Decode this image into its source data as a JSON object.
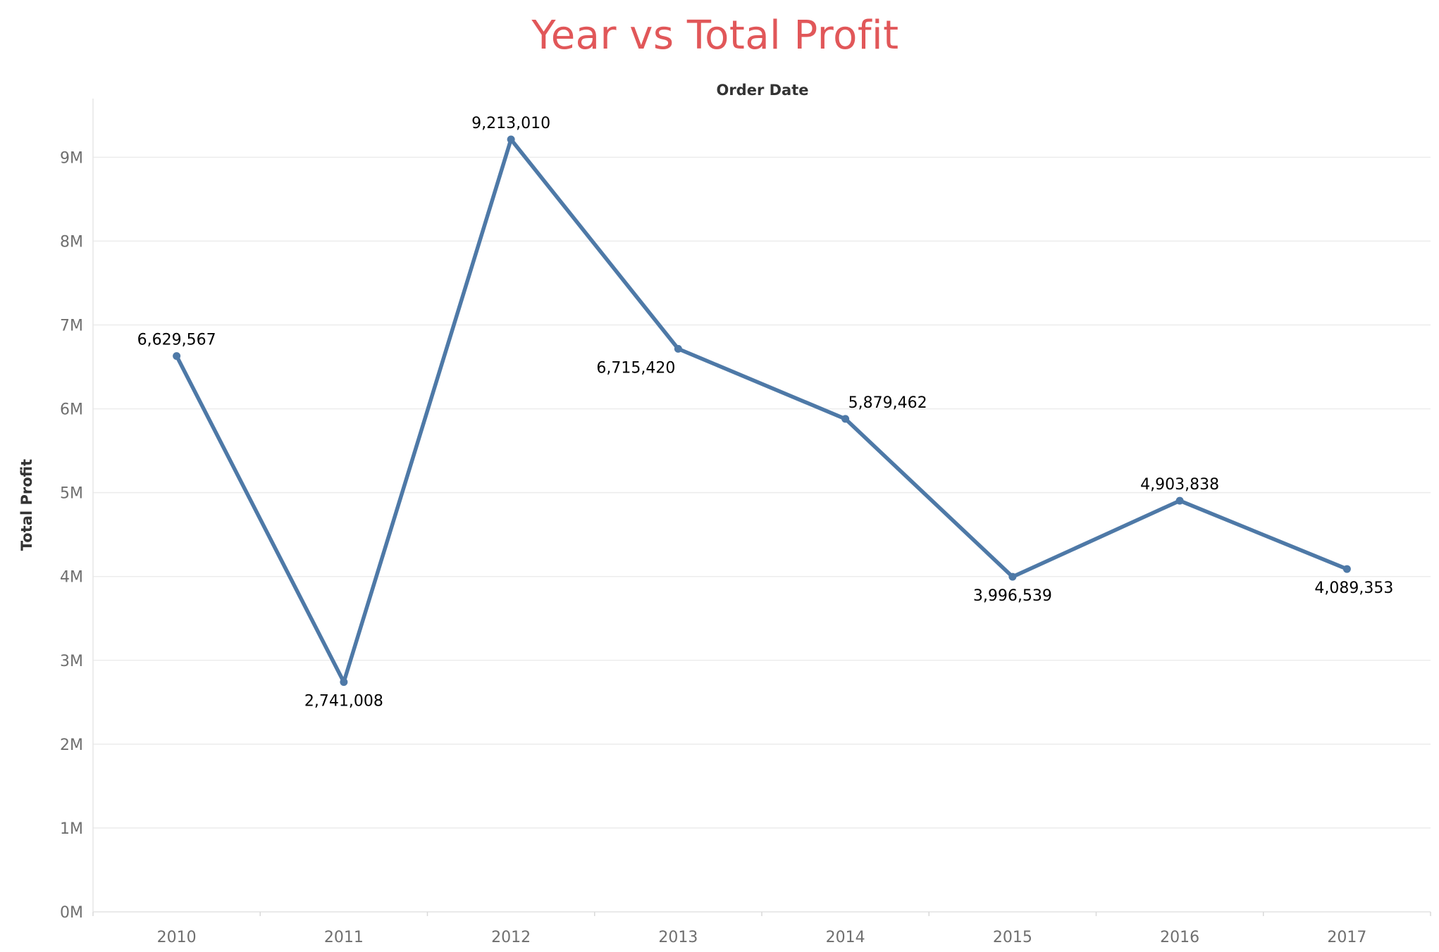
{
  "chart_data": {
    "type": "line",
    "title": "Year vs Total Profit",
    "xlabel": "Order Date",
    "ylabel": "Total Profit",
    "categories": [
      "2010",
      "2011",
      "2012",
      "2013",
      "2014",
      "2015",
      "2016",
      "2017"
    ],
    "series": [
      {
        "values": [
          6629567,
          2741008,
          9213010,
          6715420,
          5879462,
          3996539,
          4903838,
          4089353
        ],
        "data_labels": [
          "6,629,567",
          "2,741,008",
          "9,213,010",
          "6,715,420",
          "5,879,462",
          "3,996,539",
          "4,903,838",
          "4,089,353"
        ]
      }
    ],
    "ylim": [
      0,
      9700000
    ],
    "yticks": [
      0,
      1000000,
      2000000,
      3000000,
      4000000,
      5000000,
      6000000,
      7000000,
      8000000,
      9000000
    ],
    "ytick_labels": [
      "0M",
      "1M",
      "2M",
      "3M",
      "4M",
      "5M",
      "6M",
      "7M",
      "8M",
      "9M"
    ],
    "grid": true,
    "colors": {
      "title": "#e15759",
      "line": "#4e79a7",
      "grid": "#ececec",
      "tick_label": "#6f6f6f"
    }
  }
}
